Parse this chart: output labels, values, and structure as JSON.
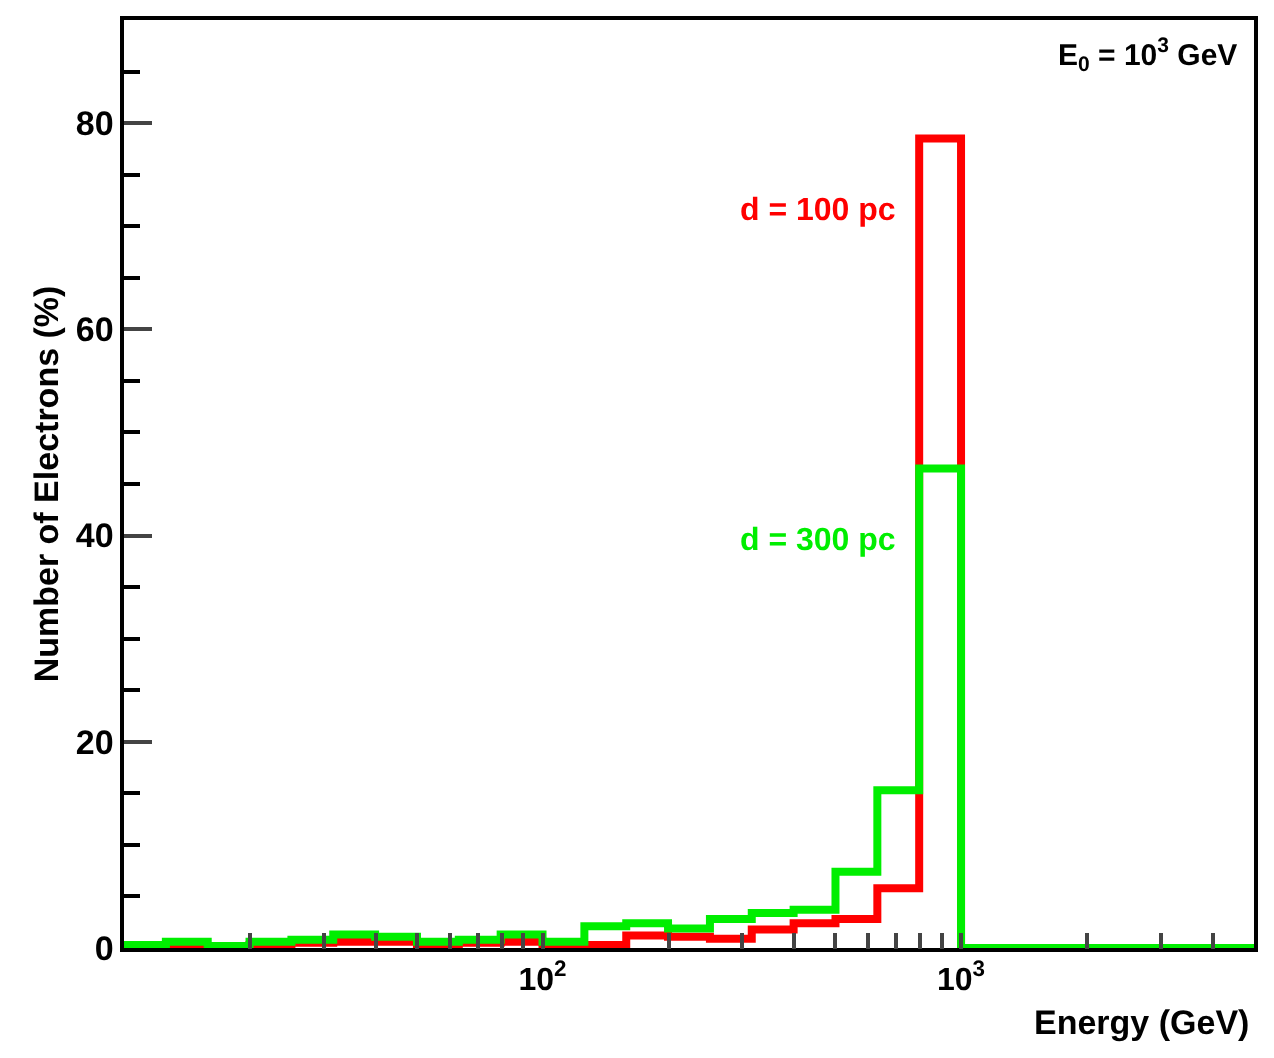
{
  "chart_data": {
    "type": "histogram",
    "xlabel": "Energy (GeV)",
    "ylabel": "Number of Electrons (%)",
    "annotations": [
      "E$_{0}$ = 10$^{3}$ GeV"
    ],
    "bins": [
      10,
      12.59,
      15.85,
      19.95,
      25.12,
      31.62,
      39.81,
      50.12,
      63.1,
      79.43,
      100,
      125.9,
      158.5,
      199.5,
      251.2,
      316.2,
      398.1,
      501.2,
      631,
      794.3,
      1000,
      1259,
      1585,
      1995,
      2512,
      3162,
      3981,
      5012
    ],
    "series": [
      {
        "name": "d = 100 pc",
        "color": "#ff0000",
        "values": [
          0,
          0.2,
          0,
          0.3,
          0.5,
          0.6,
          0.6,
          0.2,
          0.5,
          0.6,
          0.3,
          0.3,
          1.2,
          1.1,
          0.9,
          1.8,
          2.4,
          2.8,
          5.8,
          78.5,
          0,
          0,
          0,
          0,
          0,
          0,
          0
        ]
      },
      {
        "name": "d = 300 pc",
        "color": "#00ee00",
        "values": [
          0.3,
          0.6,
          0.2,
          0.6,
          0.8,
          1.3,
          1.1,
          0.6,
          0.8,
          1.3,
          0.6,
          2.1,
          2.4,
          1.9,
          2.8,
          3.4,
          3.7,
          7.4,
          15.3,
          46.5,
          0,
          0,
          0,
          0,
          0,
          0,
          0
        ]
      }
    ],
    "log": "x",
    "xlim": [
      10,
      5012
    ],
    "xticks": [
      {
        "value": 20,
        "label": null
      },
      {
        "value": 30,
        "label": null
      },
      {
        "value": 40,
        "label": null
      },
      {
        "value": 50,
        "label": null
      },
      {
        "value": 60,
        "label": null
      },
      {
        "value": 70,
        "label": null
      },
      {
        "value": 80,
        "label": null
      },
      {
        "value": 90,
        "label": null
      },
      {
        "value": 100,
        "label": "10$^{2}$"
      },
      {
        "value": 200,
        "label": null
      },
      {
        "value": 300,
        "label": null
      },
      {
        "value": 400,
        "label": null
      },
      {
        "value": 500,
        "label": null
      },
      {
        "value": 600,
        "label": null
      },
      {
        "value": 700,
        "label": null
      },
      {
        "value": 800,
        "label": null
      },
      {
        "value": 900,
        "label": null
      },
      {
        "value": 1000,
        "label": "10$^{3}$"
      },
      {
        "value": 2000,
        "label": null
      },
      {
        "value": 3000,
        "label": null
      },
      {
        "value": 4000,
        "label": null
      }
    ],
    "ylim": [
      0,
      90
    ],
    "yticks": [
      0,
      20,
      40,
      60,
      80
    ]
  }
}
